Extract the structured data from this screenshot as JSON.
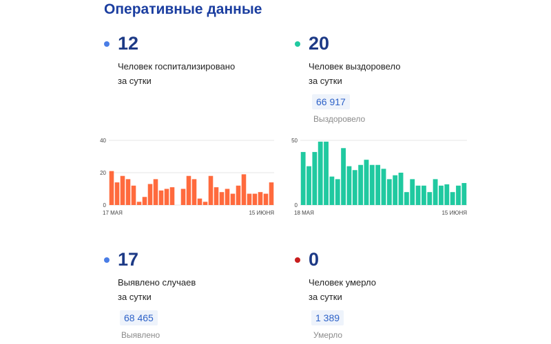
{
  "title": "Оперативные данные",
  "stats": {
    "hospitalized": {
      "value": "12",
      "line1": "Человек госпитализировано",
      "line2": "за сутки",
      "dot_color": "#4a7de6"
    },
    "recovered": {
      "value": "20",
      "line1": "Человек выздоровело",
      "line2": "за сутки",
      "dot_color": "#20c9a0",
      "total": "66 917",
      "total_label": "Выздоровело"
    },
    "cases": {
      "value": "17",
      "line1": "Выявлено случаев",
      "line2": "за сутки",
      "dot_color": "#4a7de6",
      "total": "68 465",
      "total_label": "Выявлено"
    },
    "deaths": {
      "value": "0",
      "line1": "Человек умерло",
      "line2": "за сутки",
      "dot_color": "#c81e1e",
      "total": "1 389",
      "total_label": "Умерло"
    }
  },
  "chart_data": [
    {
      "type": "bar",
      "color": "#ff6a3d",
      "ylim": [
        0,
        40
      ],
      "yticks": [
        "40",
        "20",
        "0"
      ],
      "x_start_label": "17 МАЯ",
      "x_end_label": "15 ИЮНЯ",
      "values": [
        21,
        14,
        18,
        16,
        12,
        2,
        5,
        13,
        16,
        9,
        10,
        11,
        null,
        10,
        18,
        16,
        4,
        2,
        18,
        11,
        8,
        10,
        7,
        12,
        19,
        7,
        7,
        8,
        7,
        14
      ]
    },
    {
      "type": "bar",
      "color": "#20c9a0",
      "ylim": [
        0,
        50
      ],
      "yticks": [
        "50",
        "0"
      ],
      "x_start_label": "18 МАЯ",
      "x_end_label": "15 ИЮНЯ",
      "values": [
        41,
        30,
        41,
        49,
        49,
        22,
        20,
        44,
        30,
        27,
        31,
        35,
        31,
        31,
        28,
        20,
        23,
        25,
        10,
        20,
        15,
        15,
        10,
        20,
        15,
        16,
        10,
        15,
        17
      ]
    }
  ]
}
